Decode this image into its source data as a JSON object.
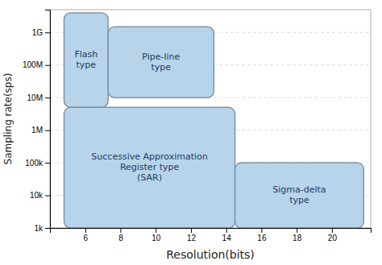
{
  "chart_data": {
    "type": "region",
    "xlabel": "Resolution(bits)",
    "ylabel": "Sampling rate(sps)",
    "log": "y",
    "grid": true,
    "xlim": [
      4.0,
      22.2
    ],
    "ylim": [
      1000,
      5000000000
    ],
    "xticks": [
      6,
      8,
      10,
      12,
      14,
      16,
      18,
      20
    ],
    "yticks": [
      {
        "value": 1000,
        "label": "1k"
      },
      {
        "value": 10000,
        "label": "10k"
      },
      {
        "value": 100000,
        "label": "100k"
      },
      {
        "value": 1000000,
        "label": "1M"
      },
      {
        "value": 10000000,
        "label": "10M"
      },
      {
        "value": 100000000,
        "label": "100M"
      },
      {
        "value": 1000000000,
        "label": "1G"
      }
    ],
    "series": [
      {
        "name": "Flash\ntype",
        "x": [
          4.8,
          7.3
        ],
        "values": [
          5000000,
          4000000000
        ],
        "color": "#b8d4ea"
      },
      {
        "name": "Pipe-line\ntype",
        "x": [
          7.3,
          13.3
        ],
        "values": [
          10000000,
          1500000000
        ],
        "color": "#b8d4ea"
      },
      {
        "name": "Successive Approximation\nRegister type\n(SAR)",
        "x": [
          4.8,
          14.5
        ],
        "values": [
          1000,
          5000000
        ],
        "color": "#b8d4ea"
      },
      {
        "name": "Sigma-delta\ntype",
        "x": [
          14.5,
          21.8
        ],
        "values": [
          1000,
          100000
        ],
        "color": "#b8d4ea"
      }
    ]
  }
}
